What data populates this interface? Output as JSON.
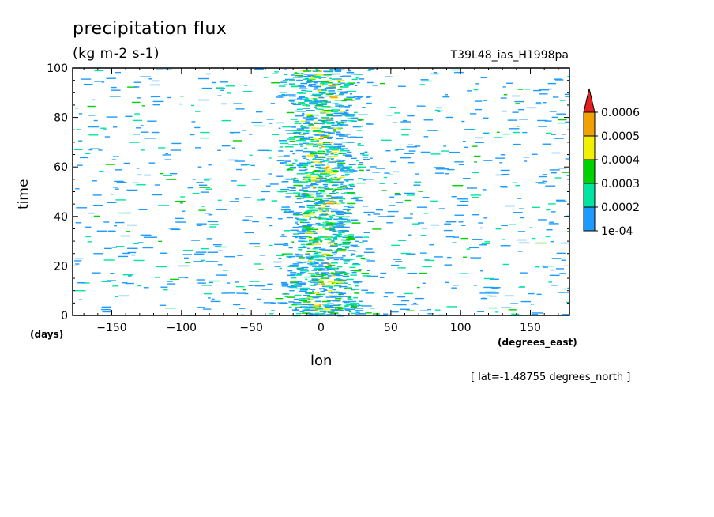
{
  "chart_data": {
    "type": "heatmap",
    "title": "precipitation flux",
    "units": "(kg m-2 s-1)",
    "dataset": "T39L48_ias_H1998pa",
    "xlabel": "lon",
    "xunit": "(degrees_east)",
    "ylabel": "time",
    "yunit": "(days)",
    "coordinate_note": "[ lat=-1.48755 degrees_north ]",
    "xlim": [
      -178,
      178
    ],
    "ylim": [
      0,
      100
    ],
    "xticks": [
      -150,
      -100,
      -50,
      0,
      50,
      100,
      150
    ],
    "yticks": [
      0,
      20,
      40,
      60,
      80,
      100
    ],
    "levels": [
      0.0001,
      0.0002,
      0.0003,
      0.0004,
      0.0005,
      0.0006
    ],
    "level_labels": [
      "1e-04",
      "0.0002",
      "0.0003",
      "0.0004",
      "0.0005",
      "0.0006"
    ],
    "colors": [
      "#1e9bff",
      "#00e6a0",
      "#00d200",
      "#f0f000",
      "#f0a000",
      "#e61e1e"
    ],
    "rainband_center_lon": 0,
    "rainband_half_width": 25
  }
}
